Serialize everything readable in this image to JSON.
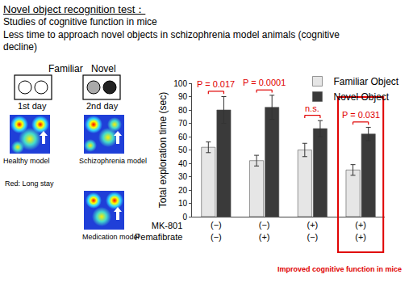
{
  "header": {
    "title": "Novel object recognition test：",
    "lines": [
      "Studies of cognitive function in mice",
      "Less time to approach novel objects in schizophrenia model animals (cognitive decline)"
    ]
  },
  "schematic": {
    "column_labels": [
      "Familiar",
      "Novel"
    ],
    "days": [
      "1st day",
      "2nd day"
    ],
    "heatmaps": [
      "Healthy model",
      "Schizophrenia model",
      "Medication model"
    ],
    "note": "Red: Long stay"
  },
  "chart_data": {
    "type": "bar",
    "y_label": "Total exploration time (sec)",
    "categories": [
      "(−)\n(−)",
      "(−)\n(+)",
      "(+)\n(−)",
      "(+)\n(+)"
    ],
    "row_labels": [
      "MK-801",
      "Pemafibrate"
    ],
    "series": [
      {
        "name": "Familiar Object",
        "color": "#e6e6e6",
        "values": [
          52,
          42,
          50,
          35
        ],
        "errors": [
          4,
          4,
          5,
          4
        ]
      },
      {
        "name": "Novel Object",
        "color": "#3a3a3a",
        "values": [
          80,
          82,
          66,
          62
        ],
        "errors": [
          10,
          9,
          6,
          5
        ]
      }
    ],
    "ylim": [
      0,
      100
    ],
    "yticks": [
      0,
      10,
      20,
      30,
      40,
      50,
      60,
      70,
      80,
      90,
      100
    ],
    "grid": false,
    "legend": "top right",
    "significance": [
      {
        "category": 0,
        "text": "P = 0.017"
      },
      {
        "category": 1,
        "text": "P = 0.0001"
      },
      {
        "category": 2,
        "text": "n.s."
      },
      {
        "category": 3,
        "text": "P = 0.031"
      }
    ],
    "annotations": [
      {
        "category": 3,
        "text": "Improved cognitive function in mice",
        "color": "#e00000"
      }
    ]
  }
}
